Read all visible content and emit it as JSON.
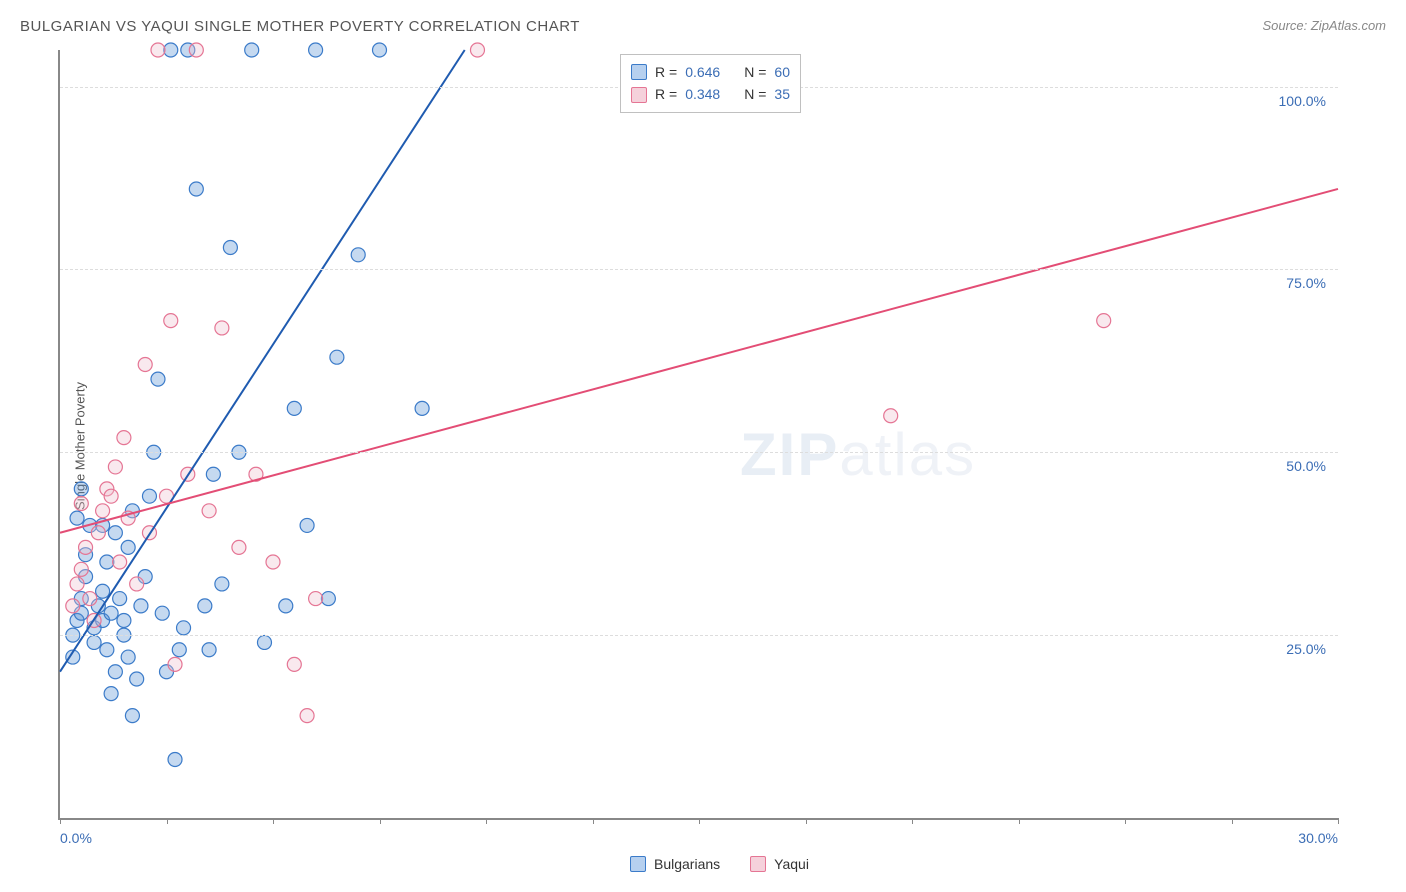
{
  "title": "BULGARIAN VS YAQUI SINGLE MOTHER POVERTY CORRELATION CHART",
  "source": "Source: ZipAtlas.com",
  "y_axis_label": "Single Mother Poverty",
  "watermark": {
    "zip": "ZIP",
    "rest": "atlas"
  },
  "chart": {
    "type": "scatter",
    "xlim": [
      0,
      30
    ],
    "ylim": [
      0,
      105
    ],
    "x_ticks": [
      0,
      2.5,
      5,
      7.5,
      10,
      12.5,
      15,
      17.5,
      20,
      22.5,
      25,
      27.5,
      30
    ],
    "x_tick_labels": {
      "0": "0.0%",
      "30": "30.0%"
    },
    "y_grid": [
      25,
      50,
      75,
      100
    ],
    "y_tick_labels": {
      "25": "25.0%",
      "50": "50.0%",
      "75": "75.0%",
      "100": "100.0%"
    },
    "background_color": "#ffffff",
    "grid_color": "#dddddd",
    "axis_color": "#888888",
    "label_color": "#3b6db5",
    "marker_radius": 7,
    "marker_stroke_width": 1.2,
    "marker_fill_opacity": 0.35,
    "trend_line_width": 2,
    "series": [
      {
        "name": "Bulgarians",
        "color": "#5a93d4",
        "stroke": "#3b7bc9",
        "line_color": "#1f5bb0",
        "R": "0.646",
        "N": "60",
        "trend": {
          "x1": 0,
          "y1": 20,
          "x2": 9.5,
          "y2": 105
        },
        "points": [
          [
            0.3,
            22
          ],
          [
            0.3,
            25
          ],
          [
            0.4,
            27
          ],
          [
            0.5,
            28
          ],
          [
            0.5,
            30
          ],
          [
            0.6,
            33
          ],
          [
            0.6,
            36
          ],
          [
            0.7,
            40
          ],
          [
            0.8,
            24
          ],
          [
            0.8,
            26
          ],
          [
            0.9,
            29
          ],
          [
            1.0,
            27
          ],
          [
            1.0,
            31
          ],
          [
            1.1,
            23
          ],
          [
            1.1,
            35
          ],
          [
            1.2,
            28
          ],
          [
            1.2,
            17
          ],
          [
            1.3,
            20
          ],
          [
            1.4,
            30
          ],
          [
            1.5,
            27
          ],
          [
            1.5,
            25
          ],
          [
            1.6,
            22
          ],
          [
            1.7,
            14
          ],
          [
            1.8,
            19
          ],
          [
            1.9,
            29
          ],
          [
            2.0,
            33
          ],
          [
            2.1,
            44
          ],
          [
            2.2,
            50
          ],
          [
            2.3,
            60
          ],
          [
            2.4,
            28
          ],
          [
            2.5,
            20
          ],
          [
            2.6,
            105
          ],
          [
            2.7,
            8
          ],
          [
            2.8,
            23
          ],
          [
            2.9,
            26
          ],
          [
            3.0,
            105
          ],
          [
            3.2,
            86
          ],
          [
            3.4,
            29
          ],
          [
            3.5,
            23
          ],
          [
            3.6,
            47
          ],
          [
            3.8,
            32
          ],
          [
            4.0,
            78
          ],
          [
            4.2,
            50
          ],
          [
            4.5,
            105
          ],
          [
            4.8,
            24
          ],
          [
            5.3,
            29
          ],
          [
            5.5,
            56
          ],
          [
            5.8,
            40
          ],
          [
            6.0,
            105
          ],
          [
            6.3,
            30
          ],
          [
            6.5,
            63
          ],
          [
            7.0,
            77
          ],
          [
            7.5,
            105
          ],
          [
            8.5,
            56
          ],
          [
            0.4,
            41
          ],
          [
            0.5,
            45
          ],
          [
            1.0,
            40
          ],
          [
            1.3,
            39
          ],
          [
            1.7,
            42
          ],
          [
            1.6,
            37
          ]
        ]
      },
      {
        "name": "Yaqui",
        "color": "#eec1cd",
        "stroke": "#e57594",
        "line_color": "#e34d75",
        "R": "0.348",
        "N": "35",
        "trend": {
          "x1": 0,
          "y1": 39,
          "x2": 30,
          "y2": 86
        },
        "points": [
          [
            0.3,
            29
          ],
          [
            0.4,
            32
          ],
          [
            0.5,
            34
          ],
          [
            0.6,
            37
          ],
          [
            0.7,
            30
          ],
          [
            0.8,
            27
          ],
          [
            0.9,
            39
          ],
          [
            1.0,
            42
          ],
          [
            1.1,
            45
          ],
          [
            1.2,
            44
          ],
          [
            1.3,
            48
          ],
          [
            1.4,
            35
          ],
          [
            1.5,
            52
          ],
          [
            1.6,
            41
          ],
          [
            1.8,
            32
          ],
          [
            2.0,
            62
          ],
          [
            2.1,
            39
          ],
          [
            2.3,
            105
          ],
          [
            2.5,
            44
          ],
          [
            2.6,
            68
          ],
          [
            2.7,
            21
          ],
          [
            3.0,
            47
          ],
          [
            3.2,
            105
          ],
          [
            3.5,
            42
          ],
          [
            3.8,
            67
          ],
          [
            4.2,
            37
          ],
          [
            4.6,
            47
          ],
          [
            5.0,
            35
          ],
          [
            5.5,
            21
          ],
          [
            5.8,
            14
          ],
          [
            6.0,
            30
          ],
          [
            9.8,
            105
          ],
          [
            19.5,
            55
          ],
          [
            24.5,
            68
          ],
          [
            0.5,
            43
          ]
        ]
      }
    ]
  },
  "legend_top": {
    "rows": [
      {
        "swatch_fill": "#b6d0ef",
        "swatch_stroke": "#3b7bc9",
        "R_label": "R =",
        "R_val": "0.646",
        "N_label": "N =",
        "N_val": "60"
      },
      {
        "swatch_fill": "#f5d1db",
        "swatch_stroke": "#e57594",
        "R_label": "R =",
        "R_val": "0.348",
        "N_label": "N =",
        "N_val": "35"
      }
    ]
  },
  "legend_bottom": {
    "items": [
      {
        "swatch_fill": "#b6d0ef",
        "swatch_stroke": "#3b7bc9",
        "label": "Bulgarians"
      },
      {
        "swatch_fill": "#f5d1db",
        "swatch_stroke": "#e57594",
        "label": "Yaqui"
      }
    ]
  }
}
